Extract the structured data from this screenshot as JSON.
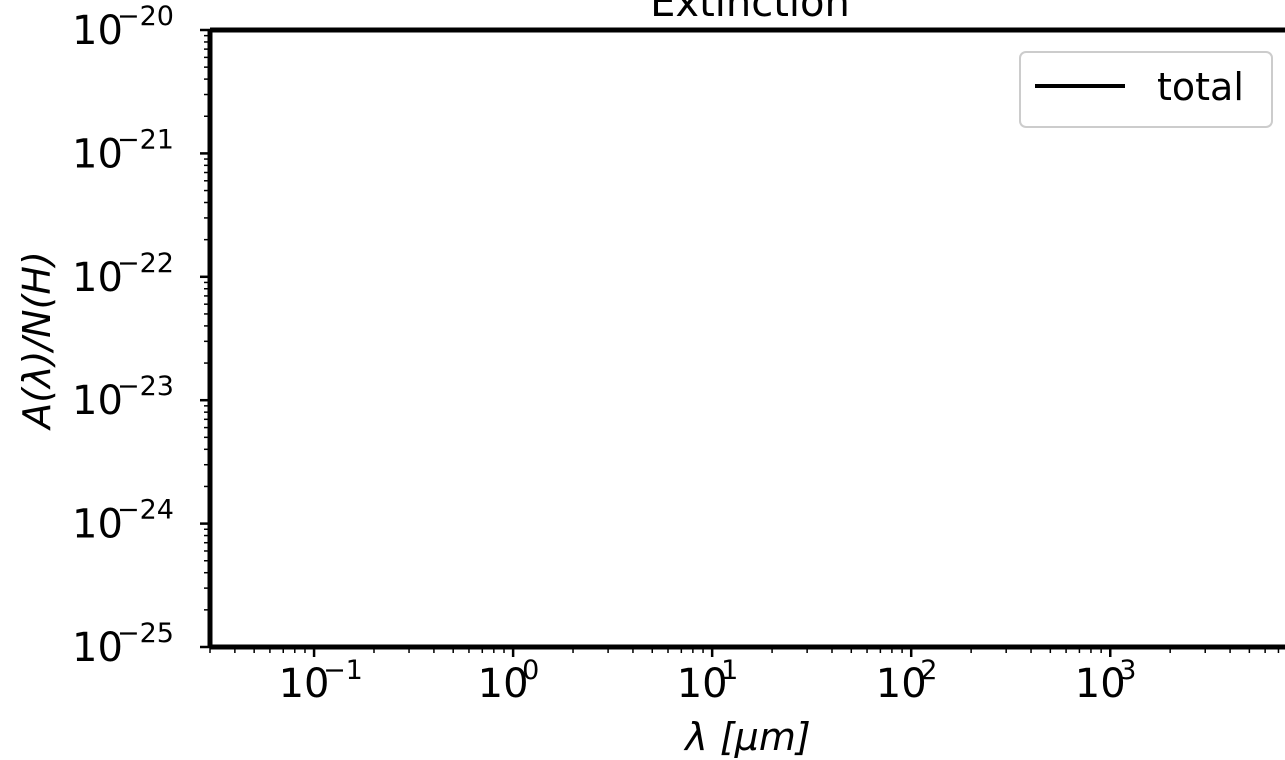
{
  "chart_data": {
    "type": "line",
    "title": "Extinction",
    "xlabel": "λ [μm]",
    "ylabel": "A(λ)/N(H)",
    "x_scale": "log",
    "y_scale": "log",
    "xlim": [
      0.03,
      8000
    ],
    "ylim": [
      1e-25,
      1e-20
    ],
    "x_ticks": [
      {
        "value": 0.1,
        "base": "10",
        "exp": "−1"
      },
      {
        "value": 1,
        "base": "10",
        "exp": "0"
      },
      {
        "value": 10,
        "base": "10",
        "exp": "1"
      },
      {
        "value": 100,
        "base": "10",
        "exp": "2"
      },
      {
        "value": 1000,
        "base": "10",
        "exp": "3"
      }
    ],
    "y_ticks": [
      {
        "value": 1e-20,
        "base": "10",
        "exp": "−20"
      },
      {
        "value": 1e-21,
        "base": "10",
        "exp": "−21"
      },
      {
        "value": 1e-22,
        "base": "10",
        "exp": "−22"
      },
      {
        "value": 1e-23,
        "base": "10",
        "exp": "−23"
      },
      {
        "value": 1e-24,
        "base": "10",
        "exp": "−24"
      },
      {
        "value": 1e-25,
        "base": "10",
        "exp": "−25"
      }
    ],
    "series": [
      {
        "name": "total",
        "color": "#000000",
        "x": [],
        "y": []
      }
    ],
    "legend": {
      "position": "top-right",
      "entries": [
        "total"
      ]
    },
    "grid": false
  }
}
